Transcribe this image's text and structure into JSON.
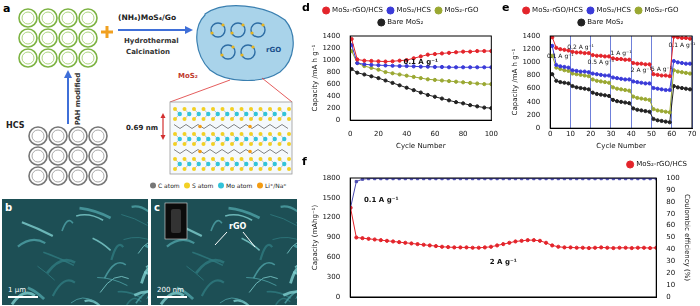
{
  "figure": {
    "a": {
      "label": "a",
      "precursor": "HCS",
      "steps": [
        "PAH modified",
        "Hydrothermal",
        "Calcination"
      ],
      "reagent": "(NH₄)MoS₄/Go",
      "components": [
        "rGO",
        "MoS₂"
      ],
      "interlayer_spacing": "0.69 nm",
      "atoms": [
        "C atom",
        "S atom",
        "Mo atom",
        "Li⁺/Na⁺"
      ]
    },
    "b": {
      "label": "b",
      "scale_bar": "1 μm"
    },
    "c": {
      "label": "c",
      "scale_bar": "200 nm",
      "annotation": "rGO"
    }
  },
  "chart_data": [
    {
      "type": "line",
      "title": "d",
      "x_label": "Cycle Number",
      "y_label": "Capacity /mA h g⁻¹",
      "xlim": [
        0,
        100
      ],
      "xticks": [
        0,
        20,
        40,
        60,
        80,
        100
      ],
      "ylim": [
        0,
        1400
      ],
      "yticks": [
        0,
        200,
        400,
        600,
        800,
        1000,
        1200,
        1400
      ],
      "grid": false,
      "legend": "top",
      "marker": "circle",
      "annotations": [
        "0.1 A g⁻¹"
      ],
      "x": [
        1,
        5,
        10,
        15,
        20,
        25,
        30,
        35,
        40,
        45,
        50,
        55,
        60,
        65,
        70,
        75,
        80,
        85,
        90,
        95,
        100
      ],
      "series": [
        {
          "name": "MoS₂-rGO/HCS",
          "color": "#e3242b",
          "values": [
            1350,
            1010,
            990,
            985,
            980,
            975,
            980,
            990,
            1000,
            1030,
            1060,
            1090,
            1100,
            1110,
            1120,
            1130,
            1140,
            1140,
            1150,
            1150,
            1150
          ]
        },
        {
          "name": "MoS₂/HCS",
          "color": "#3a3ad8",
          "values": [
            1250,
            950,
            930,
            920,
            915,
            910,
            905,
            900,
            900,
            895,
            890,
            890,
            885,
            885,
            880,
            880,
            880,
            880,
            880,
            880,
            880
          ]
        },
        {
          "name": "MoS₂-rGO",
          "color": "#9aa832",
          "values": [
            1150,
            950,
            900,
            870,
            840,
            800,
            780,
            760,
            740,
            720,
            700,
            680,
            670,
            660,
            650,
            640,
            630,
            620,
            610,
            600,
            600
          ]
        },
        {
          "name": "Bare MoS₂",
          "color": "#222222",
          "values": [
            850,
            790,
            760,
            730,
            700,
            660,
            620,
            580,
            540,
            500,
            460,
            420,
            390,
            360,
            330,
            300,
            280,
            250,
            230,
            210,
            200
          ]
        }
      ]
    },
    {
      "type": "line",
      "title": "e",
      "x_label": "Cycle Number",
      "y_label": "Capacity /mA h g⁻¹",
      "xlim": [
        0,
        70
      ],
      "xticks": [
        0,
        10,
        20,
        30,
        40,
        50,
        60,
        70
      ],
      "ylim": [
        0,
        1400
      ],
      "yticks": [
        0,
        200,
        400,
        600,
        800,
        1000,
        1200,
        1400
      ],
      "grid": true,
      "legend": "top",
      "marker": "circle",
      "annotations": [
        "0.1 A g⁻¹",
        "0.2 A g⁻¹",
        "0.5 A g⁻¹",
        "1 A g⁻¹",
        "2 A g⁻¹",
        "5 A g⁻¹",
        "0.1 A g⁻¹"
      ],
      "x": [
        1,
        3,
        5,
        7,
        9,
        11,
        13,
        15,
        17,
        19,
        21,
        23,
        25,
        27,
        29,
        31,
        33,
        35,
        37,
        39,
        41,
        43,
        45,
        47,
        49,
        51,
        53,
        55,
        57,
        59,
        61,
        63,
        65,
        67,
        69
      ],
      "series": [
        {
          "name": "MoS₂-rGO/HCS",
          "color": "#e3242b",
          "values": [
            1380,
            1220,
            1200,
            1190,
            1180,
            1160,
            1150,
            1150,
            1140,
            1140,
            1110,
            1100,
            1100,
            1090,
            1090,
            1060,
            1050,
            1050,
            1040,
            1040,
            990,
            980,
            980,
            970,
            970,
            820,
            810,
            800,
            800,
            790,
            1390,
            1380,
            1370,
            1370,
            1360
          ]
        },
        {
          "name": "MoS₂/HCS",
          "color": "#3a3ad8",
          "values": [
            1250,
            960,
            940,
            930,
            920,
            880,
            870,
            860,
            860,
            850,
            830,
            820,
            810,
            800,
            800,
            770,
            760,
            750,
            740,
            740,
            710,
            700,
            690,
            680,
            680,
            610,
            600,
            590,
            580,
            580,
            1020,
            1000,
            990,
            980,
            980
          ]
        },
        {
          "name": "MoS₂-rGO",
          "color": "#9aa832",
          "values": [
            1100,
            920,
            900,
            880,
            870,
            830,
            820,
            810,
            800,
            790,
            740,
            720,
            710,
            700,
            690,
            620,
            600,
            590,
            580,
            570,
            480,
            460,
            450,
            440,
            430,
            290,
            270,
            260,
            250,
            240,
            880,
            860,
            850,
            840,
            830
          ]
        },
        {
          "name": "Bare MoS₂",
          "color": "#222222",
          "values": [
            820,
            720,
            700,
            690,
            680,
            640,
            620,
            610,
            600,
            590,
            540,
            520,
            510,
            500,
            490,
            430,
            410,
            400,
            390,
            380,
            300,
            280,
            270,
            260,
            250,
            140,
            120,
            110,
            100,
            90,
            640,
            620,
            610,
            600,
            590
          ]
        }
      ]
    },
    {
      "type": "line",
      "title": "f",
      "y_label": "Capacity (mAhg⁻¹)",
      "y2_label": "Coulombic efficiency (%)",
      "xlim": [
        0,
        1000
      ],
      "ylim": [
        0,
        1800
      ],
      "yticks": [
        0,
        300,
        600,
        900,
        1200,
        1500,
        1800
      ],
      "y2lim": [
        0,
        100
      ],
      "y2ticks": [
        0,
        10,
        20,
        30,
        40,
        50,
        60,
        70,
        80,
        90,
        100
      ],
      "grid": false,
      "legend": "top right",
      "tick_labels": "y",
      "annotations": [
        "0.1 A g⁻¹",
        "2 A g⁻¹"
      ],
      "x": [
        1,
        20,
        40,
        60,
        80,
        100,
        120,
        140,
        160,
        180,
        200,
        220,
        240,
        260,
        280,
        300,
        320,
        340,
        360,
        380,
        400,
        420,
        440,
        460,
        480,
        500,
        520,
        540,
        560,
        580,
        600,
        620,
        640,
        660,
        680,
        700,
        720,
        740,
        760,
        780,
        800,
        820,
        840,
        860,
        880,
        900,
        920,
        940,
        960,
        980,
        1000
      ],
      "series": [
        {
          "name": "MoS₂-rGO/HCS",
          "color": "#e3242b",
          "marker": "circle",
          "values": [
            1350,
            900,
            890,
            880,
            870,
            860,
            850,
            840,
            830,
            820,
            810,
            800,
            790,
            780,
            770,
            760,
            755,
            750,
            750,
            750,
            745,
            745,
            750,
            760,
            780,
            800,
            820,
            840,
            850,
            860,
            860,
            850,
            820,
            780,
            760,
            750,
            750,
            745,
            745,
            740,
            745,
            750,
            745,
            740,
            745,
            745,
            740,
            745,
            745,
            740,
            745
          ]
        },
        {
          "color": "#4b4bb0",
          "marker": "square",
          "axis": "y2",
          "values": [
            75,
            97,
            99,
            99.5,
            99.5,
            99.5,
            99.5,
            99.5,
            99.5,
            99.5,
            99.5,
            99.5,
            99.5,
            99.5,
            99.5,
            99.5,
            99.5,
            99.5,
            99.5,
            99.5,
            99.5,
            99.5,
            99.5,
            99.5,
            99.5,
            99.5,
            99.5,
            99.5,
            99.5,
            99.5,
            99.5,
            99.5,
            99.5,
            99.5,
            99.5,
            99.5,
            99.5,
            99.5,
            99.5,
            99.5,
            99.5,
            99.5,
            99.5,
            99.5,
            99.5,
            99.5,
            99.5,
            99.5,
            99.5,
            99.5,
            99.5
          ]
        }
      ]
    }
  ]
}
